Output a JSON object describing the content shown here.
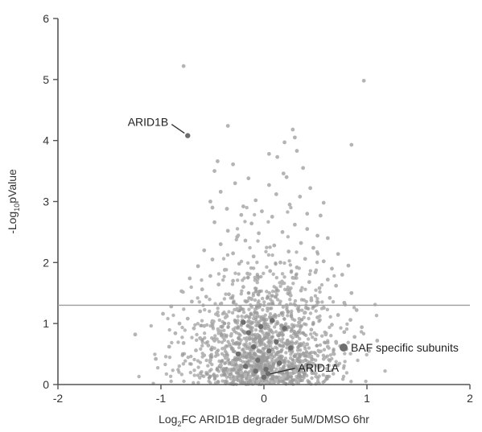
{
  "chart_data": {
    "type": "scatter",
    "title": "",
    "xlabel": "Log₂FC ARID1B degrader 5uM/DMSO 6hr",
    "xlabel_parts": {
      "prefix": "Log",
      "sub": "2",
      "suffix": "FC ARID1B degrader 5uM/DMSO 6hr"
    },
    "ylabel": "-Log₁₀pValue",
    "ylabel_parts": {
      "prefix": "-Log",
      "sub": "10",
      "suffix": "pValue"
    },
    "xlim": [
      -2,
      2
    ],
    "ylim": [
      0,
      6
    ],
    "xticks": [
      -2,
      -1,
      0,
      1,
      2
    ],
    "xtick_labels": [
      "-2",
      "-1",
      "0",
      "1",
      "2"
    ],
    "yticks": [
      0,
      1,
      2,
      3,
      4,
      5,
      6
    ],
    "ytick_labels": [
      "0",
      "1",
      "2",
      "3",
      "4",
      "5",
      "6"
    ],
    "grid": false,
    "threshold_line": {
      "y": 1.3
    },
    "colors": {
      "background_points": "#b4b4b4",
      "dense_points": "#9a9a9a",
      "baf_points": "#6e6e6e",
      "axis": "#555555",
      "threshold": "#9d9d9d"
    },
    "series": [
      {
        "name": "",
        "role": "all-proteins",
        "points": [
          [
            -0.78,
            5.22
          ],
          [
            0.97,
            4.98
          ],
          [
            -0.35,
            4.24
          ],
          [
            0.28,
            4.18
          ],
          [
            0.3,
            4.05
          ],
          [
            0.2,
            3.97
          ],
          [
            0.85,
            3.93
          ],
          [
            0.32,
            3.83
          ],
          [
            0.05,
            3.78
          ],
          [
            0.13,
            3.73
          ],
          [
            -0.45,
            3.66
          ],
          [
            -0.3,
            3.61
          ],
          [
            0.38,
            3.55
          ],
          [
            -0.48,
            3.5
          ],
          [
            0.19,
            3.46
          ],
          [
            0.22,
            3.4
          ],
          [
            -0.15,
            3.38
          ],
          [
            -0.28,
            3.3
          ],
          [
            0.05,
            3.27
          ],
          [
            0.45,
            3.22
          ],
          [
            -0.42,
            3.16
          ],
          [
            0.12,
            3.12
          ],
          [
            0.35,
            3.08
          ],
          [
            -0.08,
            3.02
          ],
          [
            -0.52,
            3.0
          ],
          [
            0.58,
            2.98
          ],
          [
            0.25,
            2.95
          ],
          [
            -0.2,
            2.92
          ],
          [
            -0.5,
            2.9
          ],
          [
            -0.36,
            2.88
          ],
          [
            -0.02,
            2.84
          ],
          [
            0.42,
            2.8
          ],
          [
            -0.22,
            2.78
          ],
          [
            0.55,
            2.77
          ],
          [
            0.08,
            2.75
          ],
          [
            -0.48,
            2.66
          ],
          [
            -0.12,
            2.64
          ],
          [
            0.3,
            2.62
          ],
          [
            0.42,
            2.55
          ],
          [
            -0.35,
            2.52
          ],
          [
            0.18,
            2.5
          ],
          [
            -0.05,
            2.48
          ],
          [
            0.52,
            2.44
          ],
          [
            -0.26,
            2.42
          ],
          [
            0.62,
            2.4
          ],
          [
            -0.18,
            2.36
          ],
          [
            0.36,
            2.32
          ],
          [
            -0.42,
            2.3
          ],
          [
            0.1,
            2.28
          ],
          [
            0.48,
            2.24
          ],
          [
            -0.58,
            2.2
          ],
          [
            0.24,
            2.18
          ],
          [
            -0.3,
            2.15
          ],
          [
            0.72,
            2.14
          ],
          [
            -0.1,
            2.1
          ],
          [
            0.4,
            2.06
          ],
          [
            -0.5,
            2.05
          ],
          [
            0.58,
            2.02
          ],
          [
            0.16,
            2.0
          ],
          [
            -0.24,
            1.98
          ],
          [
            0.82,
            1.95
          ],
          [
            -0.64,
            1.94
          ],
          [
            0.32,
            1.92
          ],
          [
            0.66,
            1.9
          ],
          [
            -0.38,
            1.88
          ],
          [
            0.06,
            1.86
          ],
          [
            0.5,
            1.84
          ],
          [
            -0.16,
            1.82
          ],
          [
            0.76,
            1.8
          ],
          [
            -0.52,
            1.78
          ],
          [
            0.28,
            1.75
          ],
          [
            -0.72,
            1.74
          ],
          [
            0.62,
            1.72
          ],
          [
            -0.3,
            1.7
          ],
          [
            0.44,
            1.68
          ],
          [
            0.18,
            1.66
          ],
          [
            -0.44,
            1.64
          ],
          [
            0.7,
            1.62
          ],
          [
            -0.2,
            1.6
          ],
          [
            0.54,
            1.58
          ],
          [
            -0.6,
            1.56
          ],
          [
            0.36,
            1.54
          ],
          [
            -0.8,
            1.53
          ],
          [
            0.85,
            1.5
          ],
          [
            -0.34,
            1.48
          ],
          [
            0.26,
            1.46
          ],
          [
            -0.56,
            1.44
          ],
          [
            0.64,
            1.42
          ],
          [
            -0.12,
            1.4
          ],
          [
            0.46,
            1.38
          ],
          [
            -0.7,
            1.36
          ],
          [
            0.78,
            1.34
          ],
          [
            -0.42,
            1.32
          ],
          [
            0.22,
            1.3
          ],
          [
            -0.9,
            1.28
          ],
          [
            0.58,
            1.26
          ],
          [
            -0.26,
            1.24
          ],
          [
            0.9,
            1.22
          ],
          [
            -0.62,
            1.2
          ],
          [
            0.4,
            1.18
          ],
          [
            -0.98,
            1.16
          ],
          [
            0.72,
            1.14
          ],
          [
            -0.36,
            1.12
          ],
          [
            0.52,
            1.1
          ],
          [
            -0.74,
            1.08
          ],
          [
            0.84,
            1.06
          ],
          [
            -0.5,
            1.04
          ],
          [
            0.34,
            1.02
          ],
          [
            -0.82,
            1.0
          ],
          [
            0.66,
            0.98
          ],
          [
            -0.58,
            0.96
          ],
          [
            0.95,
            0.94
          ],
          [
            -0.68,
            0.92
          ],
          [
            0.46,
            0.9
          ],
          [
            -0.44,
            0.88
          ],
          [
            0.78,
            0.86
          ],
          [
            -0.86,
            0.84
          ],
          [
            0.6,
            0.82
          ],
          [
            -0.32,
            0.8
          ],
          [
            0.88,
            0.78
          ],
          [
            -0.62,
            0.76
          ],
          [
            0.5,
            0.74
          ],
          [
            -0.48,
            0.72
          ],
          [
            0.7,
            0.7
          ],
          [
            -0.78,
            0.68
          ],
          [
            0.42,
            0.66
          ],
          [
            -0.54,
            0.64
          ],
          [
            0.62,
            0.62
          ],
          [
            -0.38,
            0.6
          ],
          [
            0.8,
            0.58
          ],
          [
            -0.66,
            0.56
          ],
          [
            0.54,
            0.54
          ],
          [
            -0.46,
            0.52
          ],
          [
            0.68,
            0.5
          ],
          [
            -0.58,
            0.48
          ],
          [
            0.44,
            0.46
          ],
          [
            -0.36,
            0.44
          ],
          [
            0.58,
            0.42
          ],
          [
            -0.52,
            0.4
          ],
          [
            0.38,
            0.38
          ],
          [
            -0.3,
            0.36
          ],
          [
            0.48,
            0.34
          ],
          [
            -0.42,
            0.32
          ],
          [
            0.34,
            0.3
          ],
          [
            -0.26,
            0.28
          ],
          [
            0.4,
            0.26
          ],
          [
            -0.34,
            0.24
          ],
          [
            0.3,
            0.22
          ],
          [
            -0.22,
            0.2
          ],
          [
            0.26,
            0.18
          ],
          [
            -0.18,
            0.16
          ],
          [
            0.2,
            0.14
          ],
          [
            -0.14,
            0.12
          ],
          [
            0.16,
            0.1
          ],
          [
            -0.1,
            0.08
          ],
          [
            0.12,
            0.06
          ],
          [
            -0.06,
            0.05
          ],
          [
            0.08,
            0.04
          ],
          [
            0.02,
            0.03
          ],
          [
            -0.02,
            0.02
          ],
          [
            -1.05,
            0.42
          ],
          [
            1.02,
            0.55
          ],
          [
            -0.92,
            0.62
          ],
          [
            -1.25,
            0.82
          ],
          [
            1.1,
            0.72
          ]
        ]
      },
      {
        "name": "BAF specific subunits",
        "role": "highlight",
        "points": [
          [
            -0.74,
            4.08
          ],
          [
            0.0,
            0.12
          ],
          [
            0.02,
            0.25
          ],
          [
            -0.06,
            0.4
          ],
          [
            0.05,
            0.55
          ],
          [
            -0.15,
            0.85
          ],
          [
            0.12,
            0.7
          ],
          [
            -0.03,
            0.95
          ],
          [
            0.08,
            1.05
          ],
          [
            -0.2,
            1.02
          ],
          [
            0.2,
            0.92
          ],
          [
            -0.1,
            0.62
          ],
          [
            0.15,
            0.35
          ],
          [
            -0.18,
            0.3
          ],
          [
            0.26,
            0.6
          ],
          [
            -0.25,
            0.5
          ],
          [
            0.04,
            0.18
          ],
          [
            -0.08,
            0.22
          ]
        ]
      }
    ],
    "density_cloud": {
      "x_center": 0.0,
      "x_spread": 0.22,
      "count": 1400
    },
    "annotations": [
      {
        "label": "ARID1B",
        "x": -0.74,
        "y": 4.08
      },
      {
        "label": "ARID1A",
        "x": 0.02,
        "y": 0.16
      }
    ],
    "legend": {
      "label": "BAF specific subunits",
      "placement": "bottom-right"
    }
  }
}
